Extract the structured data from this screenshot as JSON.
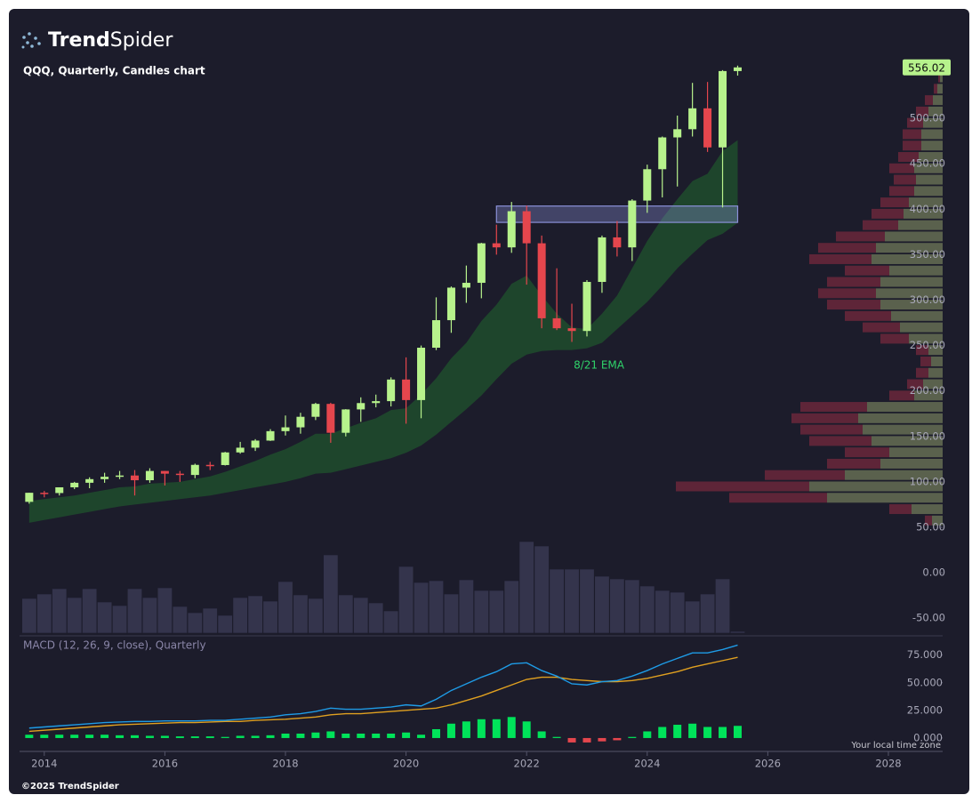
{
  "logo": {
    "bold": "Trend",
    "regular": "Spider"
  },
  "footer": "©2025 TrendSpider",
  "timezone_note": "Your local time zone",
  "chart_data": {
    "type": "candlestick",
    "title": "QQQ, Quarterly, Candles chart",
    "x": [
      2013.75,
      2014,
      2014.25,
      2014.5,
      2014.75,
      2015,
      2015.25,
      2015.5,
      2015.75,
      2016,
      2016.25,
      2016.5,
      2016.75,
      2017,
      2017.25,
      2017.5,
      2017.75,
      2018,
      2018.25,
      2018.5,
      2018.75,
      2019,
      2019.25,
      2019.5,
      2019.75,
      2020,
      2020.25,
      2020.5,
      2020.75,
      2021,
      2021.25,
      2021.5,
      2021.75,
      2022,
      2022.25,
      2022.5,
      2022.75,
      2023,
      2023.25,
      2023.5,
      2023.75,
      2024,
      2024.25,
      2024.5,
      2024.75,
      2025,
      2025.25,
      2025.5
    ],
    "open": [
      78,
      88,
      87.7,
      94,
      99,
      103,
      105.6,
      107,
      101.8,
      112,
      109,
      107.6,
      118.7,
      118.5,
      132.4,
      137.6,
      145.4,
      155.8,
      160,
      171.6,
      185.8,
      154,
      179.7,
      186.7,
      188.8,
      212.6,
      190,
      247.6,
      277.9,
      313.7,
      319,
      362.5,
      358,
      397.8,
      362.5,
      280,
      269,
      266,
      320,
      369,
      358,
      409.5,
      444,
      479,
      488,
      511,
      468,
      552
    ],
    "high": [
      88,
      90,
      94,
      100,
      105,
      110,
      112,
      113,
      115,
      112,
      112,
      120,
      122,
      133,
      144,
      147,
      158,
      173,
      176,
      187,
      187,
      180,
      193,
      196,
      215,
      237,
      250,
      303,
      315,
      338,
      363,
      383,
      408,
      404,
      371,
      335,
      296,
      322,
      371,
      387,
      411,
      449,
      480,
      503,
      539,
      540,
      553,
      558
    ],
    "low": [
      76,
      83,
      85,
      92,
      93,
      99,
      103,
      85,
      99,
      96,
      100,
      104,
      113,
      118,
      131,
      134,
      145,
      151,
      153,
      168,
      143,
      150,
      166,
      182,
      183,
      164,
      170,
      245,
      264,
      297,
      302,
      350,
      352,
      317,
      269,
      267,
      254,
      260,
      308,
      348,
      343,
      396,
      413,
      425,
      480,
      463,
      402,
      547
    ],
    "close": [
      88,
      87.7,
      94,
      99,
      103,
      105.6,
      107,
      101.8,
      112,
      109,
      107.6,
      118.7,
      118.5,
      132.4,
      137.6,
      145.4,
      155.8,
      160,
      171.6,
      185.8,
      154,
      179.7,
      186.7,
      188.8,
      212.6,
      190,
      247.6,
      277.9,
      313.7,
      319,
      362.5,
      358,
      397.8,
      362.5,
      280,
      269,
      266,
      320,
      369,
      358,
      409.5,
      444,
      479,
      488,
      511,
      468,
      552,
      556.02
    ],
    "up_color": "#b7f28c",
    "down_color": "#e5464d",
    "last_price": 556.02,
    "xlim": [
      2013.59,
      2028.9
    ],
    "xticks": [
      2014,
      2016,
      2018,
      2020,
      2022,
      2024,
      2026,
      2028
    ],
    "ylim": [
      -64.5,
      556.8
    ],
    "yticks": [
      {
        "value": 500,
        "label": "500.00"
      },
      {
        "value": 450,
        "label": "450.00"
      },
      {
        "value": 400,
        "label": "400.00"
      },
      {
        "value": 350,
        "label": "350.00"
      },
      {
        "value": 300,
        "label": "300.00"
      },
      {
        "value": 250,
        "label": "250.00"
      },
      {
        "value": 200,
        "label": "200.00"
      },
      {
        "value": 150,
        "label": "150.00"
      },
      {
        "value": 100,
        "label": "100.00"
      },
      {
        "value": 50,
        "label": "50.00"
      },
      {
        "value": 0,
        "label": "0.00"
      },
      {
        "value": -50,
        "label": "-50.00"
      }
    ],
    "ema": {
      "label": "8/21 EMA",
      "color": "#1f4a2c",
      "fast": [
        79,
        81,
        83,
        85,
        88,
        91,
        94,
        95,
        98,
        99,
        100,
        103,
        106,
        111,
        117,
        123,
        130,
        136,
        144,
        153,
        153,
        159,
        165,
        170,
        179,
        181,
        196,
        214,
        236,
        253,
        277,
        295,
        318,
        327,
        305,
        285,
        270,
        268,
        285,
        305,
        335,
        365,
        390,
        411,
        431,
        439,
        464,
        476
      ],
      "slow": [
        55,
        58,
        61,
        64,
        67,
        70,
        73,
        75,
        77,
        79,
        81,
        83,
        85,
        88,
        91,
        94,
        97,
        100,
        104,
        109,
        110,
        114,
        118,
        122,
        126,
        132,
        140,
        152,
        166,
        180,
        195,
        213,
        230,
        240,
        244,
        245,
        245,
        247,
        253,
        268,
        283,
        298,
        316,
        335,
        351,
        366,
        373,
        385
      ]
    },
    "zone": {
      "x": [
        2021.5,
        2025.5
      ],
      "y": [
        385.5,
        403.5
      ],
      "color": "#8a90d8"
    },
    "volume": {
      "color": "#34344c",
      "vlim": [
        0,
        3600
      ],
      "values": [
        1170,
        1320,
        1500,
        1200,
        1500,
        1050,
        930,
        1500,
        1200,
        1530,
        900,
        690,
        840,
        600,
        1200,
        1260,
        1080,
        1740,
        1290,
        1170,
        2640,
        1290,
        1200,
        1020,
        750,
        2250,
        1710,
        1770,
        1320,
        1800,
        1440,
        1440,
        1770,
        3090,
        2940,
        2160,
        2160,
        2160,
        1920,
        1830,
        1800,
        1590,
        1440,
        1380,
        1080,
        1320,
        1830,
        60
      ]
    },
    "volume_profile": {
      "lim": [
        0,
        350
      ],
      "up_color": "#8e9a6a",
      "down_color": "#7a2a3e",
      "prices": [
        57.5,
        70,
        82.5,
        95,
        107.5,
        120,
        132.5,
        145,
        157.5,
        170,
        182.5,
        195,
        207.5,
        220,
        232.5,
        245,
        257.5,
        270,
        282.5,
        295,
        307.5,
        320,
        332.5,
        345,
        357.5,
        370,
        382.5,
        395,
        407.5,
        420,
        432.5,
        445,
        457.5,
        470,
        482.5,
        495,
        507.5,
        520,
        532.5,
        545
      ],
      "up": [
        12,
        35,
        130,
        150,
        110,
        70,
        60,
        80,
        90,
        95,
        85,
        32,
        22,
        16,
        13,
        16,
        38,
        48,
        58,
        70,
        75,
        70,
        60,
        80,
        75,
        65,
        50,
        44,
        38,
        32,
        30,
        32,
        27,
        24,
        24,
        22,
        16,
        11,
        6,
        3
      ],
      "down": [
        8,
        25,
        110,
        150,
        90,
        60,
        50,
        70,
        70,
        75,
        75,
        28,
        18,
        14,
        12,
        14,
        32,
        42,
        52,
        60,
        65,
        60,
        50,
        70,
        65,
        55,
        40,
        36,
        32,
        28,
        25,
        28,
        23,
        21,
        21,
        18,
        14,
        9,
        4,
        2
      ]
    },
    "macd": {
      "title": "MACD (12, 26, 9, close), Quarterly",
      "macd_color": "#1e9be6",
      "signal_color": "#e0a020",
      "pos_color": "#00e35a",
      "neg_color": "#e5464d",
      "ylim": [
        -10.5,
        90
      ],
      "yticks": [
        {
          "value": 75,
          "label": "75.000"
        },
        {
          "value": 50,
          "label": "50.000"
        },
        {
          "value": 25,
          "label": "25.000"
        },
        {
          "value": 0,
          "label": "0.000"
        }
      ],
      "macd": [
        9,
        10,
        11,
        12,
        13,
        14,
        14.5,
        15,
        15,
        15.5,
        15.5,
        15.5,
        16,
        16,
        17,
        18,
        19,
        21,
        22,
        24,
        27,
        26,
        26,
        27,
        28,
        30,
        29,
        35,
        43,
        49,
        55,
        60,
        67,
        68,
        61,
        56,
        49,
        48,
        51,
        52,
        56,
        61,
        67,
        72,
        77,
        77,
        80,
        84
      ],
      "signal": [
        6,
        7,
        8,
        9,
        10,
        11,
        12,
        12.5,
        13,
        13.5,
        14,
        14,
        14.5,
        15,
        15,
        16,
        16.5,
        17,
        18,
        19,
        21,
        22,
        22,
        23,
        24,
        25,
        26,
        27,
        30,
        34,
        38,
        43,
        48,
        53,
        55,
        55,
        53,
        52,
        51,
        51,
        52,
        54,
        57,
        60,
        64,
        67,
        70,
        73
      ],
      "histogram": [
        3,
        3,
        3,
        3,
        3,
        3,
        2.5,
        2.5,
        2,
        2,
        1.5,
        1.5,
        1.5,
        1,
        2,
        2,
        2.5,
        4,
        4,
        5,
        6,
        4,
        4,
        4,
        4,
        5,
        3,
        8,
        13,
        15,
        17,
        17,
        19,
        15,
        6,
        1,
        -4,
        -4,
        -3,
        -2,
        1,
        6,
        10,
        12,
        13,
        10,
        10,
        11
      ]
    }
  }
}
